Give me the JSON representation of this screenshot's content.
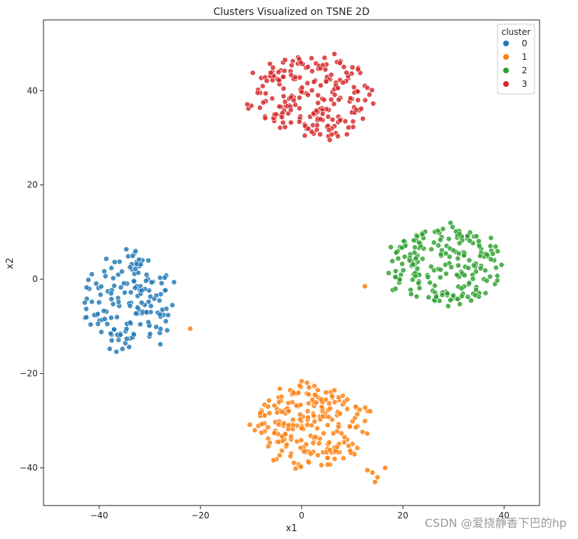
{
  "chart_data": {
    "type": "scatter",
    "title": "Clusters Visualized on TSNE 2D",
    "xlabel": "x1",
    "ylabel": "x2",
    "xlim": [
      -51,
      47
    ],
    "ylim": [
      -48,
      55
    ],
    "xticks": [
      -40,
      -20,
      0,
      20,
      40
    ],
    "yticks": [
      -40,
      -20,
      0,
      20,
      40
    ],
    "grid": false,
    "legend": {
      "title": "cluster",
      "placement": "top-right",
      "entries": [
        "0",
        "1",
        "2",
        "3"
      ]
    },
    "series": [
      {
        "name": "0",
        "color": "#1f77b4",
        "center": [
          -34,
          -5
        ],
        "spread": [
          5.5,
          5.8
        ],
        "count": 160,
        "seed": 11,
        "extra_points": [
          [
            -22,
            -10.5
          ]
        ],
        "extra_color": "#ff7f0e"
      },
      {
        "name": "1",
        "color": "#ff7f0e",
        "center": [
          2,
          -31
        ],
        "spread": [
          7.0,
          5.0
        ],
        "count": 230,
        "seed": 23,
        "extra_points": [
          [
            14,
            -41
          ],
          [
            15,
            -42
          ],
          [
            16.5,
            -40
          ],
          [
            13,
            -40.5
          ],
          [
            14.5,
            -43
          ]
        ],
        "extra_color": "#ff7f0e"
      },
      {
        "name": "2",
        "color": "#2ca02c",
        "center": [
          28,
          3
        ],
        "spread": [
          7.0,
          4.6
        ],
        "count": 210,
        "seed": 37,
        "extra_points": [
          [
            12.5,
            -1.5
          ]
        ],
        "extra_color": "#ff7f0e"
      },
      {
        "name": "3",
        "color": "#d62728",
        "center": [
          2,
          39
        ],
        "spread": [
          7.5,
          5.0
        ],
        "count": 220,
        "seed": 53,
        "extra_points": [],
        "extra_color": "#d62728"
      }
    ]
  },
  "watermark": "CSDN @爱挠静香下巴的hp"
}
